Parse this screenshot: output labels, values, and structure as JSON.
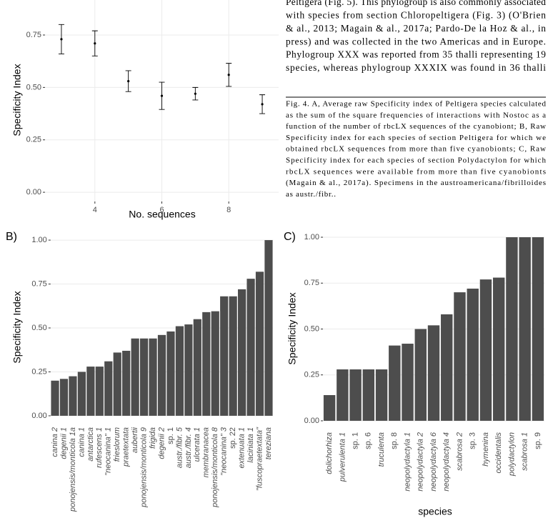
{
  "body_text": [
    "Peltigera (Fig. 5). This phylogroup is also commonly associated",
    "with species from section Chloropeltigera (Fig. 3) (O'Brien",
    "& al., 2013; Magain & al., 2017a; Pardo-De la Hoz & al., in",
    "press) and was collected in the two Americas and in Europe.",
    "Phylogroup XXX was reported from 35 thalli representing 19",
    "species, whereas phylogroup XXXIX was found in 36 thalli"
  ],
  "caption": [
    "Fig. 4. A, Average raw Specificity index of Peltigera species calculated",
    "as the sum of the square frequencies of interactions with Nostoc as a",
    "function of the number of rbcLX sequences of the cyanobiont; B, Raw",
    "Specificity index for each species of section Peltigera for which we",
    "obtained rbcLX sequences from more than five cyanobionts; C, Raw",
    "Specificity index for each species of section Polydactylon for which",
    "rbcLX sequences were available from more than five cyanobionts",
    "(Magain & al., 2017a). Specimens in the austroamericana/fibrilloides",
    "as austr./fibr.."
  ],
  "chart_data": [
    {
      "type": "scatter",
      "y_label": "Specificity Index",
      "x_label": "No. sequences",
      "x": [
        3,
        4,
        5,
        6,
        7,
        8,
        9
      ],
      "values": [
        0.73,
        0.71,
        0.53,
        0.46,
        0.47,
        0.56,
        0.42
      ],
      "errors": [
        0.07,
        0.06,
        0.05,
        0.065,
        0.03,
        0.055,
        0.045
      ],
      "color": "#000000",
      "xlim": [
        2.51,
        9.49
      ],
      "xticks": [
        4,
        6,
        8
      ],
      "ylim": [
        -0.044,
        0.917
      ],
      "yticks": [
        {
          "value": 0,
          "label": "0.00"
        },
        {
          "value": 0.25,
          "label": "0.25"
        },
        {
          "value": 0.5,
          "label": "0.50"
        },
        {
          "value": 0.75,
          "label": "0.75"
        }
      ],
      "grid": true
    },
    {
      "type": "bar",
      "label": "B)",
      "y_label": "Specificity Index",
      "categories": [
        "canina 2",
        "degenii 1",
        "ponojensis/monticola 1a",
        "canina 1",
        "antarctica",
        "rufescens 1",
        "\"neocanina\" 1",
        "frieslorum",
        "praetextata",
        "aubertii",
        "ponojensis/monticola 9",
        "frigida",
        "degenii 2",
        "sp. 1",
        "austr./fibr. 5",
        "austr./fibr. 4",
        "ulcerata 1",
        "membranacea",
        "ponojensis/monticola 8",
        "\"neocanina\" 3",
        "sp. 22",
        "extenuata 1",
        "laciniata 1",
        "\"fuscopraetextata\"",
        "tereziana"
      ],
      "values": [
        0.2,
        0.21,
        0.225,
        0.25,
        0.28,
        0.28,
        0.31,
        0.36,
        0.37,
        0.44,
        0.44,
        0.44,
        0.46,
        0.48,
        0.51,
        0.52,
        0.55,
        0.59,
        0.595,
        0.68,
        0.68,
        0.72,
        0.78,
        0.82,
        1.0
      ],
      "color": "#4d4d4d",
      "ylim": [
        -0.045,
        1.045
      ],
      "yticks": [
        {
          "value": 0,
          "label": "0.00"
        },
        {
          "value": 0.25,
          "label": "0.25"
        },
        {
          "value": 0.5,
          "label": "0.50"
        },
        {
          "value": 0.75,
          "label": "0.75"
        },
        {
          "value": 1,
          "label": "1.00"
        }
      ],
      "grid": true
    },
    {
      "type": "bar",
      "label": "C)",
      "y_label": "Specificity Index",
      "x_label": "species",
      "categories": [
        "dolichorhiza",
        "pulverulenta 1",
        "sp. 1",
        "sp. 6",
        "truculenta",
        "sp. 8",
        "neopolydactyla 1",
        "neopolydactyla 2",
        "neopolydactyla 6",
        "neopolydactyla 4",
        "scabrosa 2",
        "sp. 3",
        "hymenina",
        "occidentalis",
        "polydactylon",
        "scabrosa 1",
        "sp. 9"
      ],
      "values": [
        0.14,
        0.28,
        0.28,
        0.28,
        0.28,
        0.41,
        0.42,
        0.5,
        0.52,
        0.58,
        0.7,
        0.72,
        0.77,
        0.78,
        1.0,
        1.0,
        1.0
      ],
      "color": "#4d4d4d",
      "ylim": [
        -0.043,
        1.039
      ],
      "yticks": [
        {
          "value": 0,
          "label": "0.00"
        },
        {
          "value": 0.25,
          "label": "0.25"
        },
        {
          "value": 0.5,
          "label": "0.50"
        },
        {
          "value": 0.75,
          "label": "0.75"
        },
        {
          "value": 1,
          "label": "1.00"
        }
      ],
      "grid": true
    }
  ]
}
